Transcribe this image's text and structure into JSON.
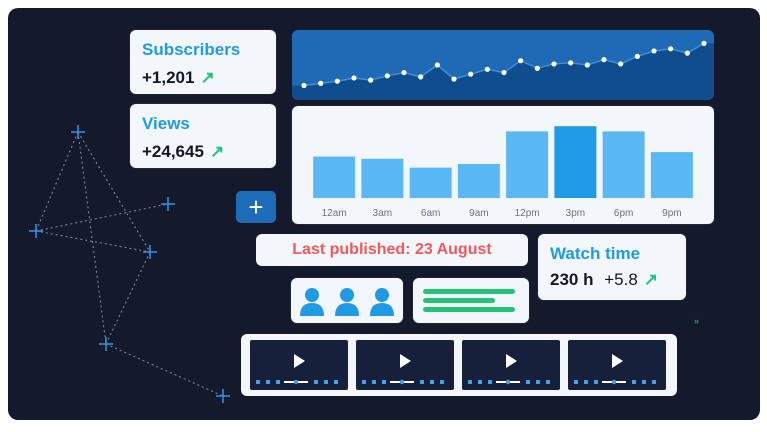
{
  "stats": {
    "subscribers": {
      "label": "Subscribers",
      "value": "+1,201"
    },
    "views": {
      "label": "Views",
      "value": "+24,645"
    }
  },
  "subscriber_trend": [
    0.12,
    0.16,
    0.2,
    0.26,
    0.22,
    0.3,
    0.36,
    0.28,
    0.5,
    0.24,
    0.33,
    0.42,
    0.36,
    0.58,
    0.44,
    0.52,
    0.54,
    0.5,
    0.6,
    0.52,
    0.66,
    0.76,
    0.8,
    0.72,
    0.9
  ],
  "views_chart": {
    "categories": [
      "12am",
      "3am",
      "6am",
      "9am",
      "12pm",
      "3pm",
      "6pm",
      "9pm"
    ],
    "values": [
      0.56,
      0.53,
      0.41,
      0.46,
      0.9,
      0.97,
      0.9,
      0.62
    ],
    "highlight_index": 5
  },
  "add_button": {
    "label": "+"
  },
  "last_published": {
    "label": "Last published: 23 August"
  },
  "watch_time": {
    "label": "Watch time",
    "value": "230 h",
    "delta": "+5.8"
  },
  "colors": {
    "background": "#141a2b",
    "accent": "#1f9be6",
    "bar": "#5ab8f5",
    "bar_highlight": "#1f9be6",
    "positive": "#25c27a",
    "alert": "#ef5a5a"
  },
  "icons": {
    "trend_up": "↗",
    "person": "person-icon",
    "play": "play-icon"
  },
  "videos": [
    {
      "name": "video-1"
    },
    {
      "name": "video-2"
    },
    {
      "name": "video-3"
    },
    {
      "name": "video-4"
    }
  ]
}
